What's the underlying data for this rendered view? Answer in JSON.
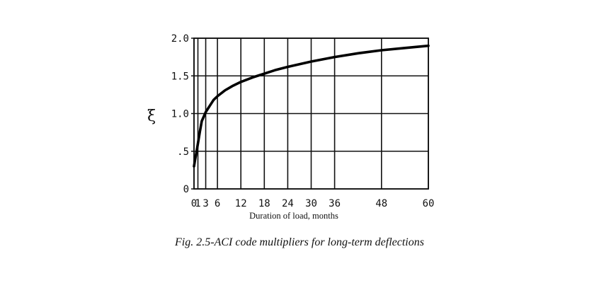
{
  "chart_data": {
    "type": "line",
    "title": "",
    "xlabel": "Duration of load, months",
    "ylabel": "ξ",
    "xlim": [
      0,
      60
    ],
    "ylim": [
      0,
      2.0
    ],
    "grid": true,
    "x_ticks": [
      0,
      1,
      3,
      6,
      12,
      18,
      24,
      30,
      36,
      48,
      60
    ],
    "x_tick_labels": [
      "0",
      "1",
      "3",
      "6",
      "12",
      "18",
      "24",
      "30",
      "36",
      "48",
      "60"
    ],
    "y_ticks": [
      0,
      0.5,
      1.0,
      1.5,
      2.0
    ],
    "y_tick_labels": [
      "0",
      ".5",
      "1.0",
      "1.5",
      "2.0"
    ],
    "series": [
      {
        "x": [
          0,
          0.25,
          0.5,
          1,
          1.5,
          2,
          3,
          4,
          5,
          6,
          8,
          10,
          12,
          15,
          18,
          21,
          24,
          30,
          36,
          42,
          48,
          54,
          60
        ],
        "y": [
          0.3,
          0.38,
          0.45,
          0.6,
          0.76,
          0.9,
          1.02,
          1.1,
          1.18,
          1.23,
          1.31,
          1.37,
          1.42,
          1.48,
          1.53,
          1.58,
          1.62,
          1.69,
          1.75,
          1.8,
          1.84,
          1.87,
          1.9
        ]
      }
    ]
  },
  "caption": "Fig. 2.5-ACI  code multipliers for long-term deflections"
}
